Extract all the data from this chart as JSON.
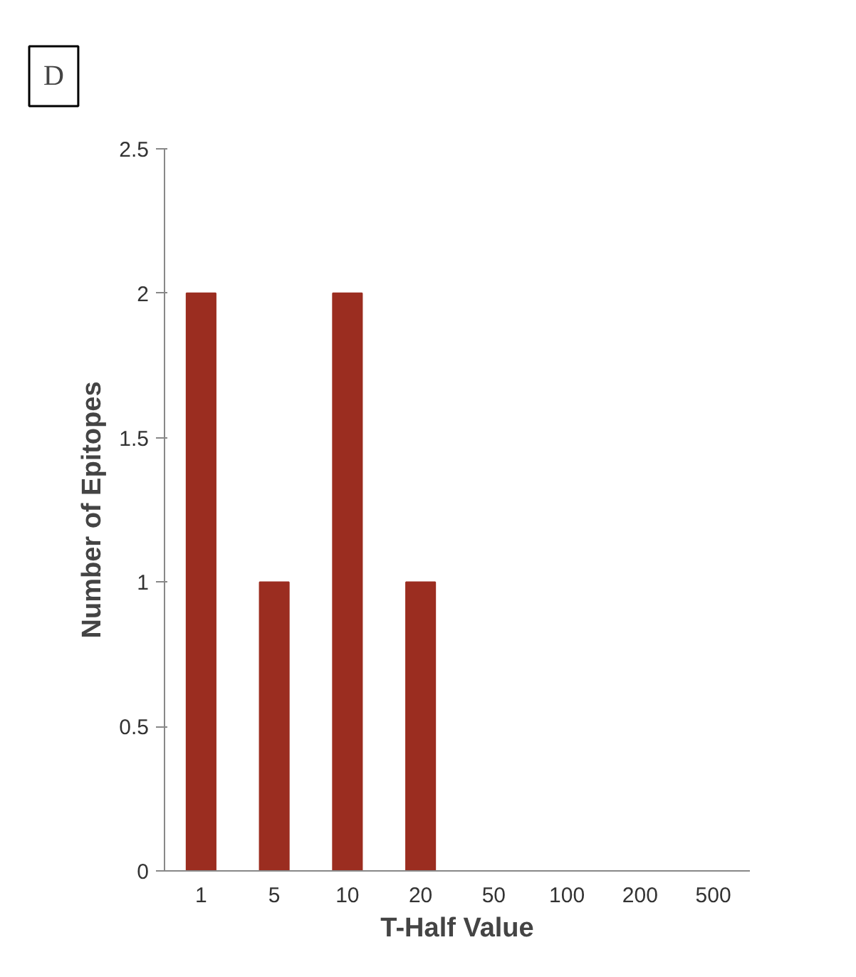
{
  "chart_data": {
    "type": "bar",
    "xlabel": "T-Half Value",
    "ylabel": "Number of Epitopes",
    "annotations": [
      "D"
    ],
    "categories": [
      "1",
      "5",
      "10",
      "20",
      "50",
      "100",
      "200",
      "500"
    ],
    "values": [
      2,
      1,
      2,
      1,
      0,
      0,
      0,
      0
    ],
    "color": "#9b2d20",
    "ylim": [
      0,
      2.5
    ],
    "yticks": [
      0,
      0.5,
      1,
      1.5,
      2,
      2.5
    ],
    "grid": false
  }
}
